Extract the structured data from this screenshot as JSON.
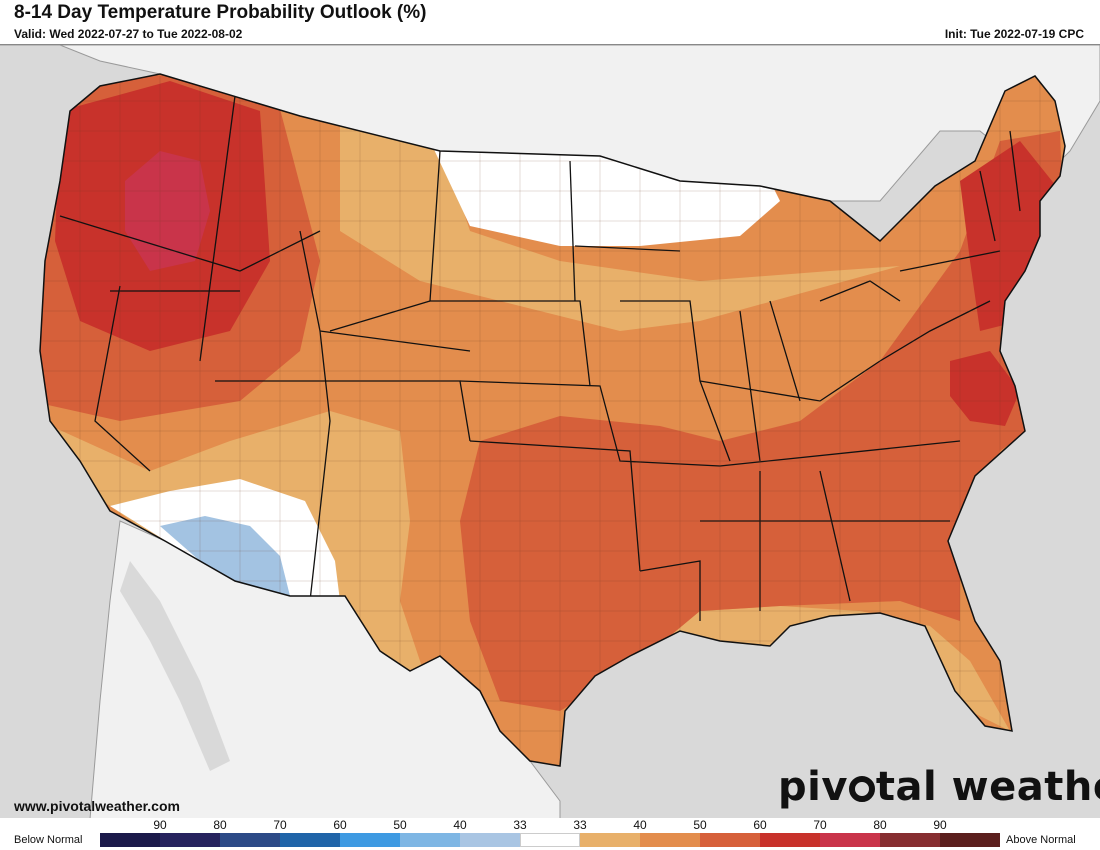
{
  "header": {
    "title": "8-14 Day Temperature Probability Outlook (%)",
    "valid": "Valid: Wed 2022-07-27 to Tue 2022-08-02",
    "init": "Init: Tue 2022-07-19 CPC"
  },
  "footer": {
    "website": "www.pivotalweather.com",
    "logo_left": "piv",
    "logo_right": "tal weather"
  },
  "legend": {
    "below_label": "Below Normal",
    "above_label": "Above Normal",
    "ticks": [
      "90",
      "80",
      "70",
      "60",
      "50",
      "40",
      "33",
      "33",
      "40",
      "50",
      "60",
      "70",
      "80",
      "90"
    ],
    "colors": [
      "#1b1a4a",
      "#27235e",
      "#2c4a86",
      "#1f64a8",
      "#3e9ae2",
      "#7eb6e4",
      "#a9c5e3",
      "#ffffff",
      "#e8b06a",
      "#e38d4d",
      "#d6603a",
      "#c8322b",
      "#c9344a",
      "#862d30",
      "#5c1f1e"
    ]
  },
  "map": {
    "colors": {
      "background": "#d9d9d9",
      "land": "#f1f1f1",
      "p33": "#ffffff",
      "p40": "#e8b06a",
      "p50": "#e38d4d",
      "p60": "#d6603a",
      "p70": "#c8322b",
      "p80": "#c9344a",
      "below40": "#a3c3e2"
    }
  }
}
